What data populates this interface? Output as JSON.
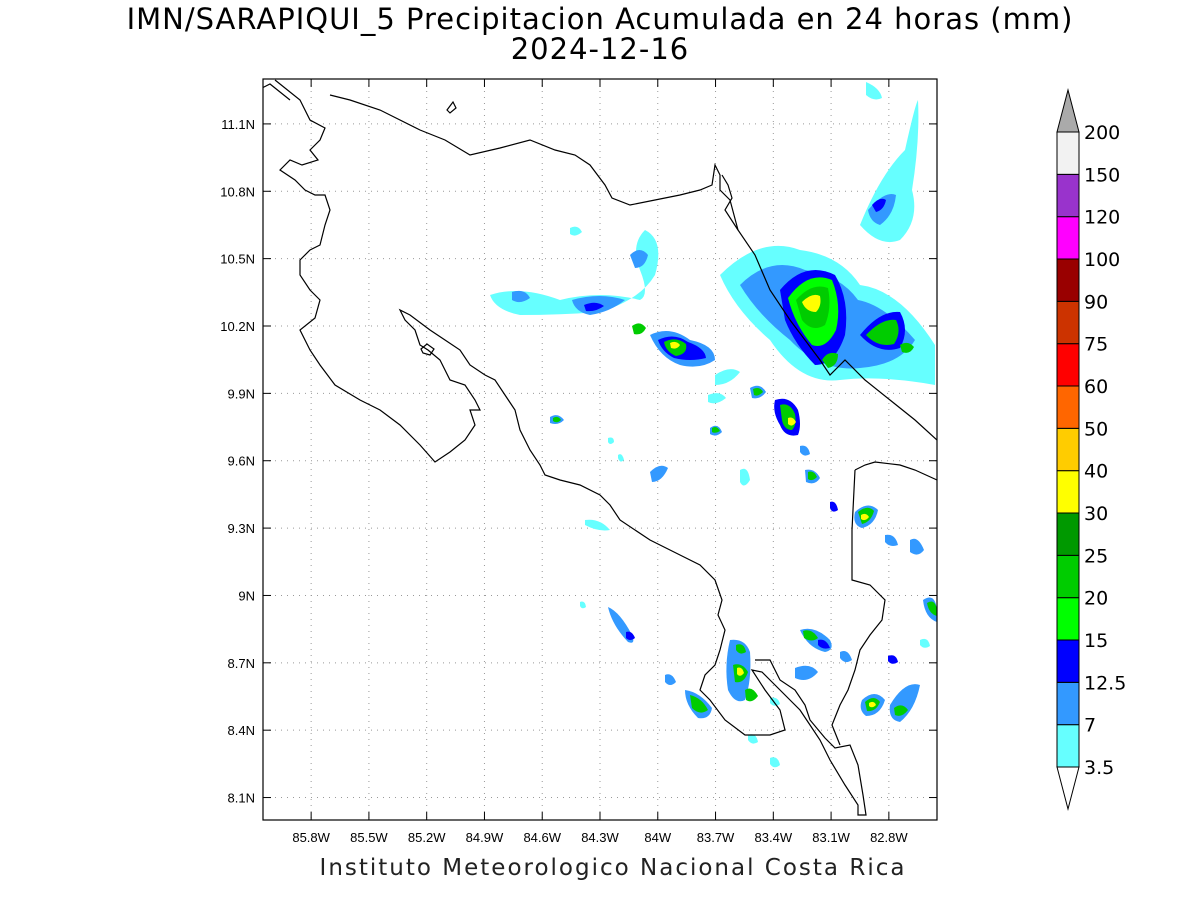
{
  "title": {
    "line1": "IMN/SARAPIQUI_5 Precipitacion Acumulada en 24 horas (mm)",
    "line2": "2024-12-16"
  },
  "footer": "Instituto Meteorologico Nacional Costa Rica",
  "map": {
    "lon_range": [
      -86.05,
      -82.55
    ],
    "lat_range": [
      8.0,
      11.3
    ],
    "lat_ticks": [
      "11.1N",
      "10.8N",
      "10.5N",
      "10.2N",
      "9.9N",
      "9.6N",
      "9.3N",
      "9N",
      "8.7N",
      "8.4N",
      "8.1N"
    ],
    "lon_ticks": [
      "85.8W",
      "85.5W",
      "85.2W",
      "84.9W",
      "84.6W",
      "84.3W",
      "84W",
      "83.7W",
      "83.4W",
      "83.1W",
      "82.8W"
    ],
    "grid": true
  },
  "colorbar": {
    "labels": [
      "3.5",
      "7",
      "12.5",
      "15",
      "20",
      "25",
      "30",
      "40",
      "50",
      "60",
      "75",
      "90",
      "100",
      "120",
      "150",
      "200"
    ],
    "colors": [
      "#66ffff",
      "#3399ff",
      "#0000ff",
      "#00ff00",
      "#00cc00",
      "#009900",
      "#ffff00",
      "#ffcc00",
      "#ff6600",
      "#ff0000",
      "#cc3300",
      "#990000",
      "#ff00ff",
      "#9933cc",
      "#f2f2f2",
      "#aaaaaa"
    ]
  }
}
